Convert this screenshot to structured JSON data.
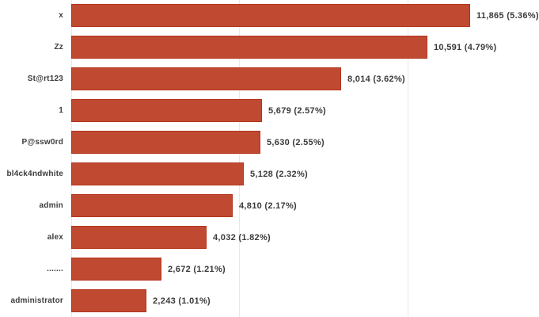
{
  "chart_data": {
    "type": "bar",
    "orientation": "horizontal",
    "title": "",
    "xlabel": "",
    "ylabel": "",
    "legend": "none",
    "grid": "vertical",
    "categories": [
      "x",
      "Zz",
      "St@rt123",
      "1",
      "P@ssw0rd",
      "bl4ck4ndwhite",
      "admin",
      "alex",
      ".......",
      "administrator"
    ],
    "values": [
      11865,
      10591,
      8014,
      5679,
      5630,
      5128,
      4810,
      4032,
      2672,
      2243
    ],
    "percents": [
      5.36,
      4.79,
      3.62,
      2.57,
      2.55,
      2.32,
      2.17,
      1.82,
      1.21,
      1.01
    ],
    "value_labels": [
      "11,865 (5.36%)",
      "10,591 (4.79%)",
      "8,014 (3.62%)",
      "5,679 (2.57%)",
      "5,630 (2.55%)",
      "5,128 (2.32%)",
      "4,810 (2.17%)",
      "4,032 (1.82%)",
      "2,672 (1.21%)",
      "2,243 (1.01%)"
    ],
    "xlim": [
      0,
      13765
    ],
    "gridline_values": [
      0,
      5000,
      10000
    ],
    "bar_color": "#bf4a31",
    "bar_border_color": "#b5331c",
    "gridline_color": "#e9e9e9",
    "label_color": "#3d3d3d"
  }
}
